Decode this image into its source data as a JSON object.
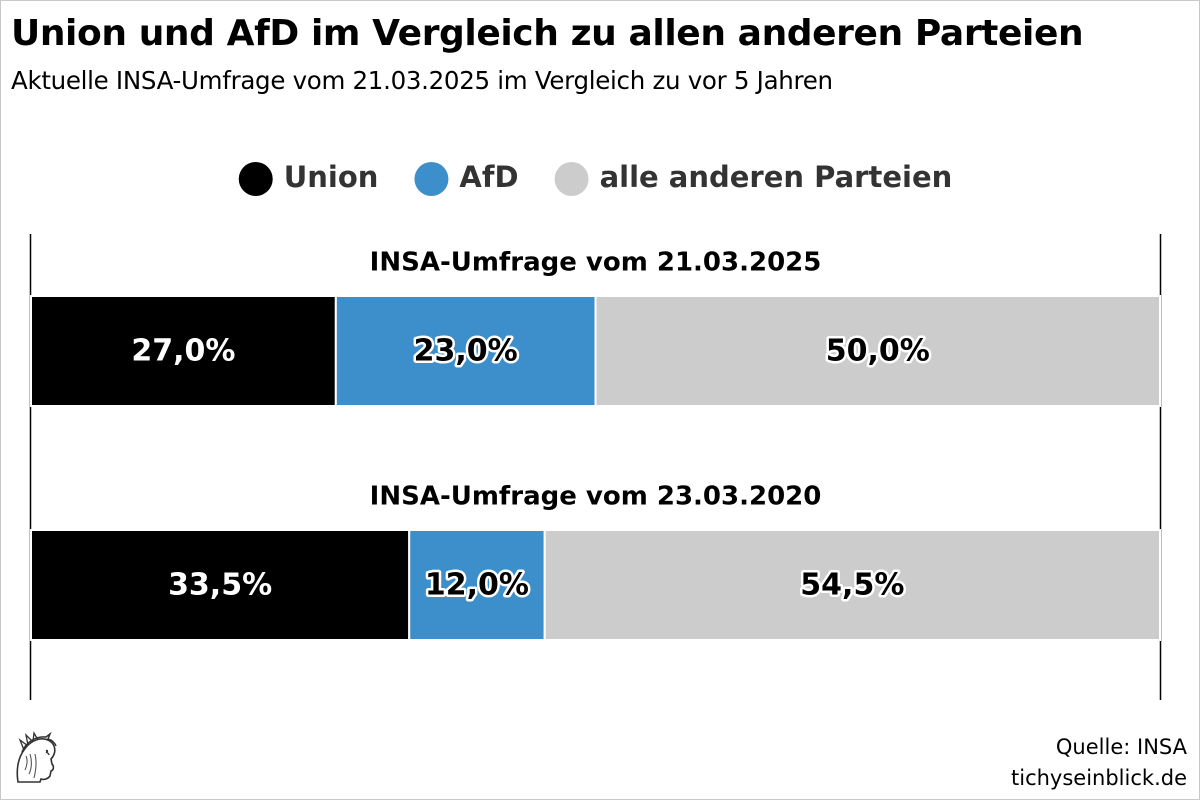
{
  "title": "Union und AfD im Vergleich zu allen anderen Parteien",
  "subtitle": "Aktuelle INSA-Umfrage vom 21.03.2025 im Vergleich zu vor 5 Jahren",
  "colors": {
    "union": "#000000",
    "afd": "#3d8fcb",
    "other": "#cccccc"
  },
  "chart_data": {
    "type": "bar",
    "orientation": "horizontal",
    "stacked": true,
    "legend_position": "top",
    "grid": false,
    "xlim": [
      0,
      100
    ],
    "legend": [
      "Union",
      "AfD",
      "alle anderen Parteien"
    ],
    "categories": [
      "INSA-Umfrage vom 21.03.2025",
      "INSA-Umfrage vom 23.03.2020"
    ],
    "series": [
      {
        "name": "Union",
        "values": [
          27.0,
          33.5
        ],
        "labels": [
          "27,0%",
          "33,5%"
        ]
      },
      {
        "name": "AfD",
        "values": [
          23.0,
          12.0
        ],
        "labels": [
          "23,0%",
          "12,0%"
        ]
      },
      {
        "name": "alle anderen Parteien",
        "values": [
          50.0,
          54.5
        ],
        "labels": [
          "50,0%",
          "54,5%"
        ]
      }
    ]
  },
  "footer": {
    "source": "Quelle: INSA",
    "site": "tichyseinblick.de"
  }
}
